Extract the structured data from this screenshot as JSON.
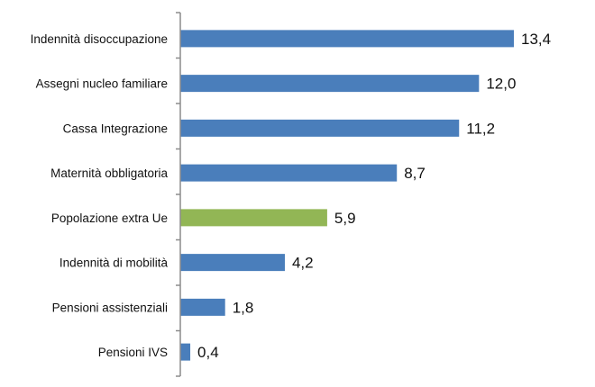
{
  "chart_data": {
    "type": "bar",
    "orientation": "horizontal",
    "title": "",
    "xlabel": "",
    "ylabel": "",
    "categories": [
      "Indennità disoccupazione",
      "Assegni nucleo familiare",
      "Cassa Integrazione",
      "Maternità obbligatoria",
      "Popolazione extra Ue",
      "Indennità di mobilità",
      "Pensioni assistenziali",
      "Pensioni IVS"
    ],
    "values": [
      13.4,
      12.0,
      11.2,
      8.7,
      5.9,
      4.2,
      1.8,
      0.4
    ],
    "value_labels": [
      "13,4",
      "12,0",
      "11,2",
      "8,7",
      "5,9",
      "4,2",
      "1,8",
      "0,4"
    ],
    "bar_colors": [
      "#4a7ebb",
      "#4a7ebb",
      "#4a7ebb",
      "#4a7ebb",
      "#92b655",
      "#4a7ebb",
      "#4a7ebb",
      "#4a7ebb"
    ],
    "xlim": [
      0,
      14
    ],
    "grid": false,
    "legend": "none"
  }
}
